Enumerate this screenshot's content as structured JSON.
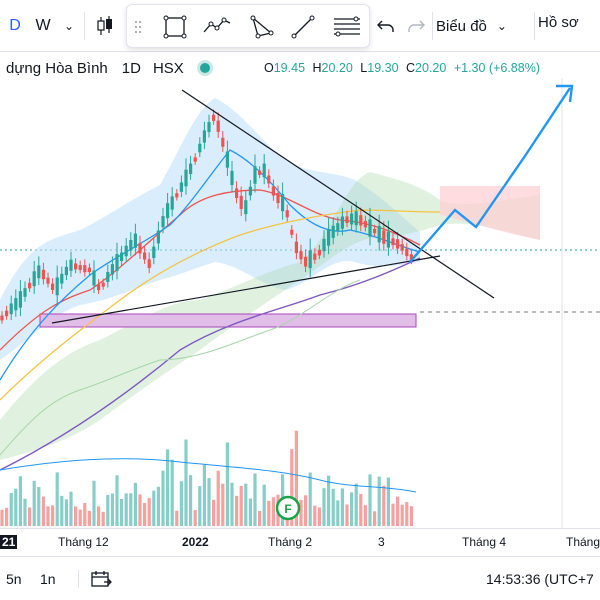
{
  "toolbar": {
    "interval_d": "D",
    "interval_w": "W",
    "interval_caret": "⌄",
    "chart_type_label": "Biểu đồ",
    "chart_type_caret": "⌄",
    "profile_label": "Hồ sơ"
  },
  "drawing_tools": [
    "rectangle-tool",
    "path-tool",
    "triangle-tool",
    "trendline-tool",
    "fib-tool"
  ],
  "legend": {
    "symbol_name": "dựng Hòa Bình",
    "interval": "1D",
    "exchange": "HSX",
    "open_label": "O",
    "open": "19.45",
    "high_label": "H",
    "high": "20.20",
    "low_label": "L",
    "low": "19.30",
    "close_label": "C",
    "close": "20.20",
    "change": "+1.30 (+6.88%)",
    "status_color": "#26a69a"
  },
  "time_axis": {
    "ticks": [
      "21",
      "Tháng 12",
      "2022",
      "Tháng 2",
      "3",
      "Tháng 4",
      "Tháng"
    ]
  },
  "event_marker": "F",
  "bottombar": {
    "range_5n": "5n",
    "range_1n": "1n",
    "clock": "14:53:36 (UTC+7"
  },
  "colors": {
    "up": "#26a69a",
    "down": "#ef5350",
    "ichimoku_cloud_up": "#a5d6a7",
    "ichimoku_cloud_down": "#ffcdd2",
    "bollinger_fill": "#bbdefb",
    "ma_red": "#ef5350",
    "ma_blue": "#2196f3",
    "ma_yellow": "#f5c342",
    "ma_purple": "#7e57c2",
    "projection": "#2196f3",
    "support_box": "#e1bee7"
  }
}
